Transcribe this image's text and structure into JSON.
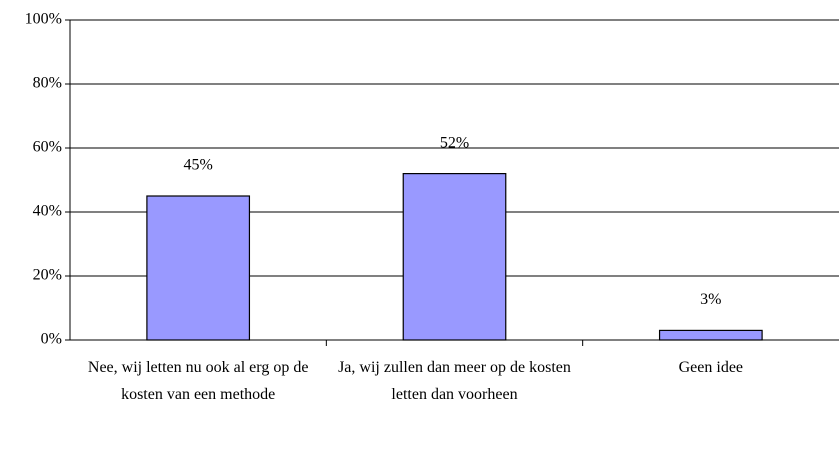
{
  "chart_data": {
    "type": "bar",
    "categories": [
      "Nee, wij letten nu ook al erg op de kosten van een methode",
      "Ja, wij zullen dan meer op de kosten letten dan voorheen",
      "Geen idee"
    ],
    "values": [
      45,
      52,
      3
    ],
    "value_labels": [
      "45%",
      "52%",
      "3%"
    ],
    "color": "#9999ff",
    "ylim": [
      0,
      100
    ],
    "yticks": [
      {
        "value": 0,
        "label": "0%"
      },
      {
        "value": 20,
        "label": "20%"
      },
      {
        "value": 40,
        "label": "40%"
      },
      {
        "value": 60,
        "label": "60%"
      },
      {
        "value": 80,
        "label": "80%"
      },
      {
        "value": 100,
        "label": "100%"
      }
    ],
    "grid": true
  }
}
